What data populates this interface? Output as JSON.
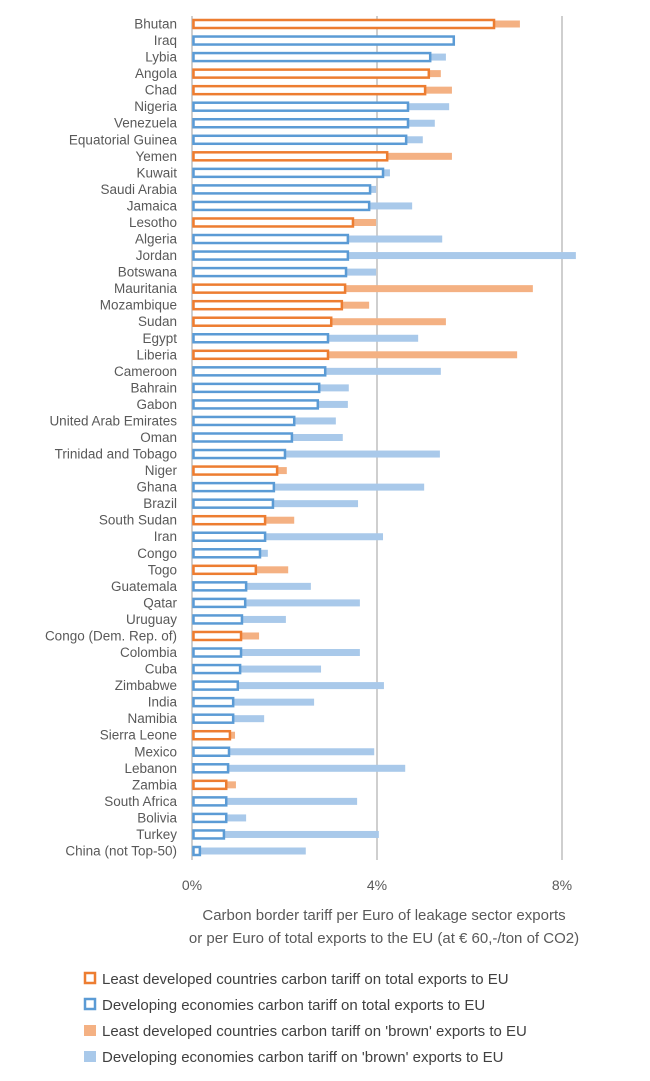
{
  "chart_data": {
    "type": "bar",
    "orientation": "horizontal",
    "xlabel_lines": [
      "Carbon border tariff per Euro of leakage sector exports",
      "or per Euro of total exports to the EU (at € 60,-/ton of CO2)"
    ],
    "xlim": [
      0,
      8.8
    ],
    "xticks": [
      0,
      4,
      8
    ],
    "xtick_labels": [
      "0%",
      "4%",
      "8%"
    ],
    "grid": true,
    "legend_position": "bottom",
    "colors": {
      "ldc": "#ED7D31",
      "ldc_light": "#F4B183",
      "dev": "#5B9BD5",
      "dev_light": "#A9C9EA",
      "grid": "#BFBFBF"
    },
    "categories": [
      "Bhutan",
      "Iraq",
      "Lybia",
      "Angola",
      "Chad",
      "Nigeria",
      "Venezuela",
      "Equatorial Guinea",
      "Yemen",
      "Kuwait",
      "Saudi Arabia",
      "Jamaica",
      "Lesotho",
      "Algeria",
      "Jordan",
      "Botswana",
      "Mauritania",
      "Mozambique",
      "Sudan",
      "Egypt",
      "Liberia",
      "Cameroon",
      "Bahrain",
      "Gabon",
      "United Arab Emirates",
      "Oman",
      "Trinidad and Tobago",
      "Niger",
      "Ghana",
      "Brazil",
      "South Sudan",
      "Iran",
      "Congo",
      "Togo",
      "Guatemala",
      "Qatar",
      "Uruguay",
      "Congo (Dem. Rep. of)",
      "Colombia",
      "Cuba",
      "Zimbabwe",
      "India",
      "Namibia",
      "Sierra Leone",
      "Mexico",
      "Lebanon",
      "Zambia",
      "South Africa",
      "Bolivia",
      "Turkey",
      "China (not Top-50)"
    ],
    "group": [
      "ldc",
      "dev",
      "dev",
      "ldc",
      "ldc",
      "dev",
      "dev",
      "dev",
      "ldc",
      "dev",
      "dev",
      "dev",
      "ldc",
      "dev",
      "dev",
      "dev",
      "ldc",
      "ldc",
      "ldc",
      "dev",
      "ldc",
      "dev",
      "dev",
      "dev",
      "dev",
      "dev",
      "dev",
      "ldc",
      "dev",
      "dev",
      "ldc",
      "dev",
      "dev",
      "ldc",
      "dev",
      "dev",
      "dev",
      "ldc",
      "dev",
      "dev",
      "dev",
      "dev",
      "dev",
      "ldc",
      "dev",
      "dev",
      "ldc",
      "dev",
      "dev",
      "dev",
      "dev"
    ],
    "total_exports_tariff": [
      6.53,
      5.66,
      5.15,
      5.12,
      5.04,
      4.67,
      4.67,
      4.63,
      4.22,
      4.13,
      3.85,
      3.83,
      3.48,
      3.37,
      3.37,
      3.33,
      3.31,
      3.24,
      3.01,
      2.94,
      2.94,
      2.88,
      2.75,
      2.72,
      2.21,
      2.16,
      2.01,
      1.84,
      1.77,
      1.75,
      1.58,
      1.58,
      1.47,
      1.38,
      1.17,
      1.15,
      1.08,
      1.06,
      1.06,
      1.04,
      0.99,
      0.89,
      0.89,
      0.82,
      0.8,
      0.78,
      0.74,
      0.74,
      0.74,
      0.69,
      0.17
    ],
    "brown_exports_tariff": [
      7.09,
      5.66,
      5.49,
      5.38,
      5.62,
      5.56,
      5.25,
      4.99,
      5.62,
      4.28,
      3.98,
      4.76,
      3.98,
      5.41,
      8.3,
      3.98,
      7.37,
      3.83,
      5.49,
      4.89,
      7.03,
      5.38,
      3.39,
      3.37,
      3.11,
      3.26,
      5.36,
      2.05,
      5.02,
      3.59,
      2.21,
      4.13,
      1.64,
      2.08,
      2.57,
      3.63,
      2.03,
      1.45,
      3.63,
      2.79,
      4.15,
      2.64,
      1.56,
      0.93,
      3.94,
      4.61,
      0.95,
      3.57,
      1.17,
      4.04,
      2.46
    ],
    "legend": [
      {
        "key": "ldc_total",
        "label": "Least developed countries carbon tariff on total exports to EU"
      },
      {
        "key": "dev_total",
        "label": "Developing economies carbon tariff on total exports to EU"
      },
      {
        "key": "ldc_brown",
        "label": "Least developed countries carbon tariff on 'brown' exports to EU"
      },
      {
        "key": "dev_brown",
        "label": "Developing economies carbon tariff on 'brown' exports to EU"
      }
    ]
  }
}
